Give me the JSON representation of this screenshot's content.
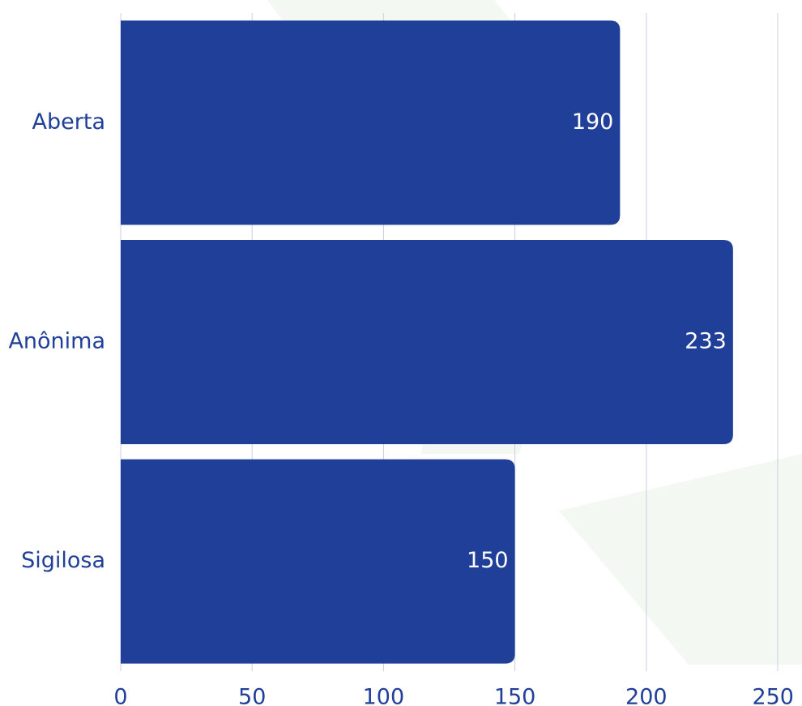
{
  "chart_data": {
    "type": "bar",
    "orientation": "horizontal",
    "categories": [
      "Aberta",
      "Anônima",
      "Sigilosa"
    ],
    "values": [
      190,
      233,
      150
    ],
    "value_labels": [
      "190",
      "233",
      "150"
    ],
    "xlim": [
      0,
      250
    ],
    "x_ticks": [
      0,
      50,
      100,
      150,
      200,
      250
    ],
    "x_tick_labels": [
      "0",
      "50",
      "100",
      "150",
      "200",
      "250"
    ],
    "grid": "vertical",
    "title": "",
    "xlabel": "",
    "ylabel": ""
  },
  "colors": {
    "bar": "#1f3f99",
    "text": "#1f3f99",
    "value_text": "#ffffff",
    "grid": "#c9cde3",
    "background": "#ffffff",
    "watermark": "#f3f8f2"
  }
}
